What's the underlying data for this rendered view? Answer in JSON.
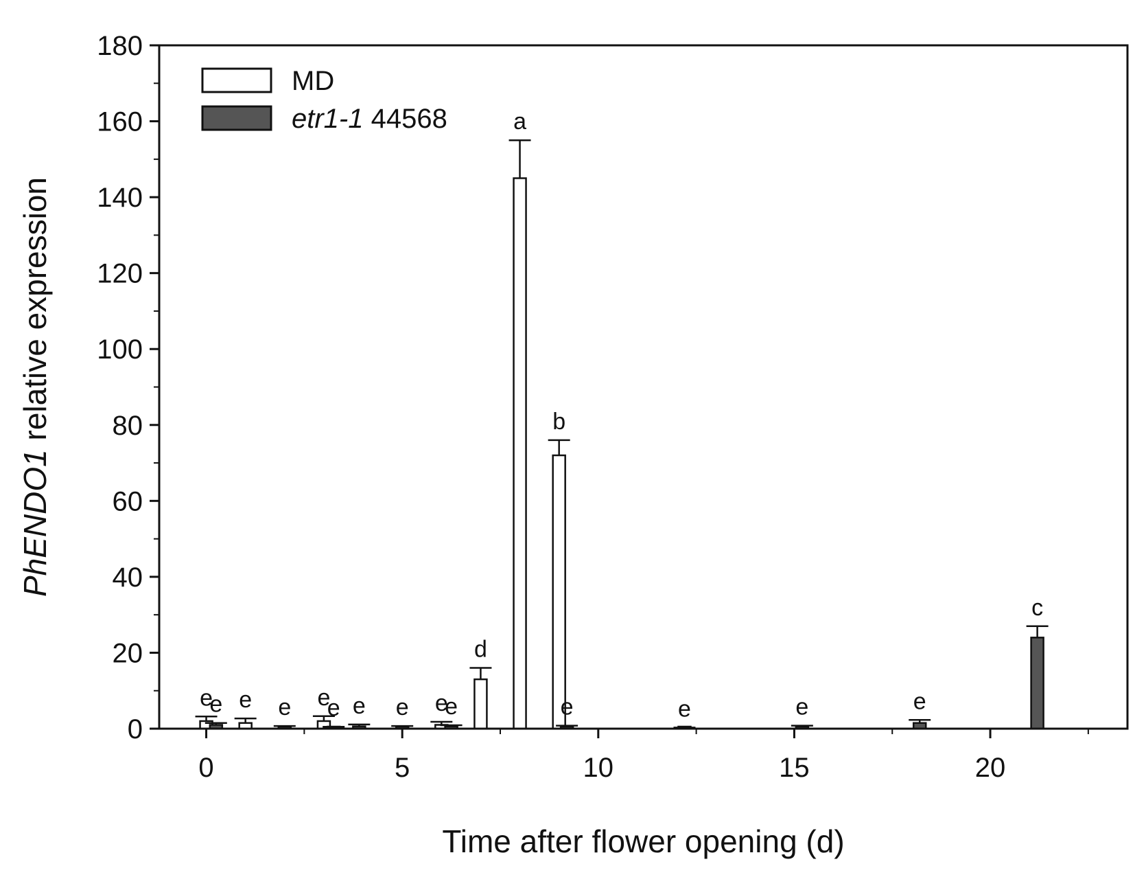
{
  "chart_data": {
    "type": "bar",
    "title": "",
    "xlabel": "Time after flower opening (d)",
    "ylabel_parts": [
      {
        "text": "PhENDO1",
        "italic": true
      },
      {
        "text": " relative expression",
        "italic": false
      }
    ],
    "xlim": [
      -1.2,
      23.5
    ],
    "ylim": [
      0,
      180
    ],
    "x_ticks": [
      0,
      5,
      10,
      15,
      20
    ],
    "y_ticks": [
      0,
      20,
      40,
      60,
      80,
      100,
      120,
      140,
      160,
      180
    ],
    "grid": false,
    "legend_position": "top-left",
    "series": [
      {
        "name_parts": [
          {
            "text": "MD",
            "italic": false
          }
        ],
        "color": "#ffffff",
        "points": [
          {
            "x": 0,
            "y": 2,
            "err": 1.2,
            "label": "e"
          },
          {
            "x": 1,
            "y": 1.5,
            "err": 1.2,
            "label": "e"
          },
          {
            "x": 3,
            "y": 2,
            "err": 1.3,
            "label": "e"
          },
          {
            "x": 6,
            "y": 1,
            "err": 0.8,
            "label": "e"
          },
          {
            "x": 7,
            "y": 13,
            "err": 3,
            "label": "d"
          },
          {
            "x": 8,
            "y": 145,
            "err": 10,
            "label": "a"
          },
          {
            "x": 9,
            "y": 72,
            "err": 4,
            "label": "b"
          }
        ]
      },
      {
        "name_parts": [
          {
            "text": "etr1-1",
            "italic": true
          },
          {
            "text": " 44568",
            "italic": false
          }
        ],
        "color": "#555555",
        "points": [
          {
            "x": 0.25,
            "y": 1,
            "err": 0.5,
            "label": "e"
          },
          {
            "x": 2,
            "y": 0.4,
            "err": 0.3,
            "label": "e"
          },
          {
            "x": 3.25,
            "y": 0.3,
            "err": 0.2,
            "label": "e"
          },
          {
            "x": 3.9,
            "y": 0.6,
            "err": 0.5,
            "label": "e"
          },
          {
            "x": 5,
            "y": 0.4,
            "err": 0.3,
            "label": "e"
          },
          {
            "x": 6.25,
            "y": 0.6,
            "err": 0.3,
            "label": "e"
          },
          {
            "x": 9.2,
            "y": 0.5,
            "err": 0.3,
            "label": "e"
          },
          {
            "x": 12.2,
            "y": 0.2,
            "err": 0.1,
            "label": "e"
          },
          {
            "x": 15.2,
            "y": 0.5,
            "err": 0.3,
            "label": "e"
          },
          {
            "x": 18.2,
            "y": 1.5,
            "err": 0.8,
            "label": "e"
          },
          {
            "x": 21.2,
            "y": 24,
            "err": 3,
            "label": "c"
          }
        ]
      }
    ]
  }
}
